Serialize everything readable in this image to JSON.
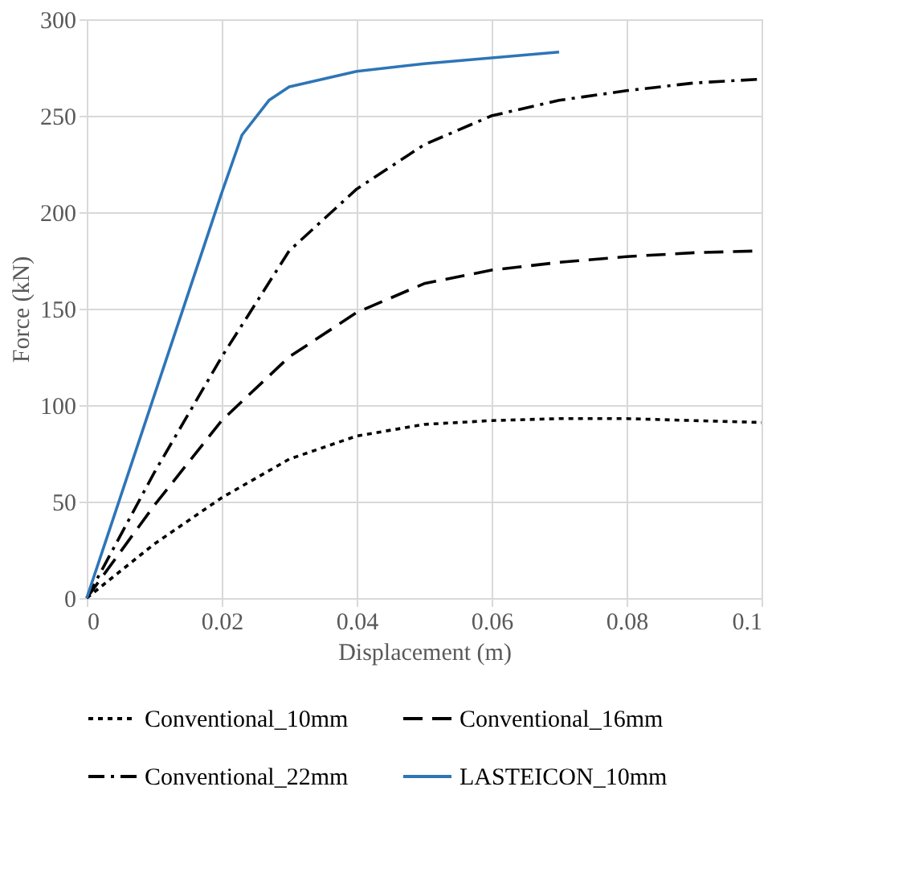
{
  "chart_data": {
    "type": "line",
    "xlabel": "Displacement (m)",
    "ylabel": "Force (kN)",
    "xlim": [
      0,
      0.1
    ],
    "xticks": [
      0,
      0.02,
      0.04,
      0.06,
      0.08,
      0.1
    ],
    "ylim": [
      0,
      300
    ],
    "yticks": [
      0,
      50,
      100,
      150,
      200,
      250,
      300
    ],
    "grid": true,
    "legend": "bottom",
    "marker": "none",
    "series": [
      {
        "name": "Conventional_10mm",
        "color": "#000000",
        "line_style": "dotted",
        "x": [
          0,
          0.01,
          0.02,
          0.03,
          0.04,
          0.05,
          0.06,
          0.07,
          0.08,
          0.09,
          0.1
        ],
        "values": [
          0,
          28,
          52,
          72,
          84,
          90,
          92,
          93,
          93,
          92,
          91
        ]
      },
      {
        "name": "Conventional_16mm",
        "color": "#000000",
        "line_style": "dashed",
        "x": [
          0,
          0.01,
          0.02,
          0.03,
          0.04,
          0.05,
          0.06,
          0.07,
          0.08,
          0.09,
          0.1
        ],
        "values": [
          0,
          48,
          92,
          125,
          148,
          163,
          170,
          174,
          177,
          179,
          180
        ]
      },
      {
        "name": "Conventional_22mm",
        "color": "#000000",
        "line_style": "dashdot",
        "x": [
          0,
          0.01,
          0.02,
          0.03,
          0.04,
          0.05,
          0.06,
          0.07,
          0.08,
          0.09,
          0.1
        ],
        "values": [
          0,
          65,
          125,
          180,
          212,
          235,
          250,
          258,
          263,
          267,
          269
        ]
      },
      {
        "name": "LASTEICON_10mm",
        "color": "#2e75b6",
        "line_style": "solid",
        "x": [
          0,
          0.01,
          0.02,
          0.023,
          0.027,
          0.03,
          0.04,
          0.05,
          0.06,
          0.07
        ],
        "values": [
          0,
          105,
          210,
          240,
          258,
          265,
          273,
          277,
          280,
          283
        ]
      }
    ]
  }
}
